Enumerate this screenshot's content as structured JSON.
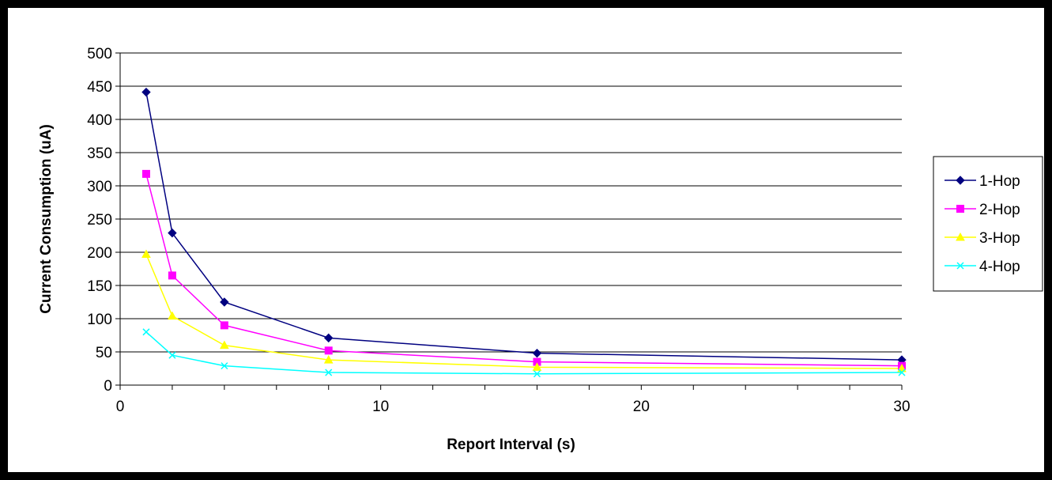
{
  "chart_data": {
    "type": "line",
    "title": "",
    "xlabel": "Report Interval (s)",
    "ylabel": "Current Consumption (uA)",
    "xlim": [
      0,
      30
    ],
    "ylim": [
      0,
      500
    ],
    "xticks": [
      0,
      10,
      20,
      30
    ],
    "yticks": [
      0,
      50,
      100,
      150,
      200,
      250,
      300,
      350,
      400,
      450,
      500
    ],
    "grid": "horizontal",
    "legend_position": "right",
    "x": [
      1,
      2,
      4,
      8,
      16,
      30
    ],
    "series": [
      {
        "name": "1-Hop",
        "values": [
          441,
          229,
          125,
          71,
          48,
          38
        ],
        "color": "#000080",
        "marker": "diamond"
      },
      {
        "name": "2-Hop",
        "values": [
          318,
          165,
          90,
          52,
          35,
          29
        ],
        "color": "#ff00ff",
        "marker": "square"
      },
      {
        "name": "3-Hop",
        "values": [
          197,
          104,
          60,
          38,
          27,
          25
        ],
        "color": "#ffff00",
        "marker": "triangle"
      },
      {
        "name": "4-Hop",
        "values": [
          80,
          45,
          29,
          19,
          17,
          19
        ],
        "color": "#00ffff",
        "marker": "x"
      }
    ]
  }
}
